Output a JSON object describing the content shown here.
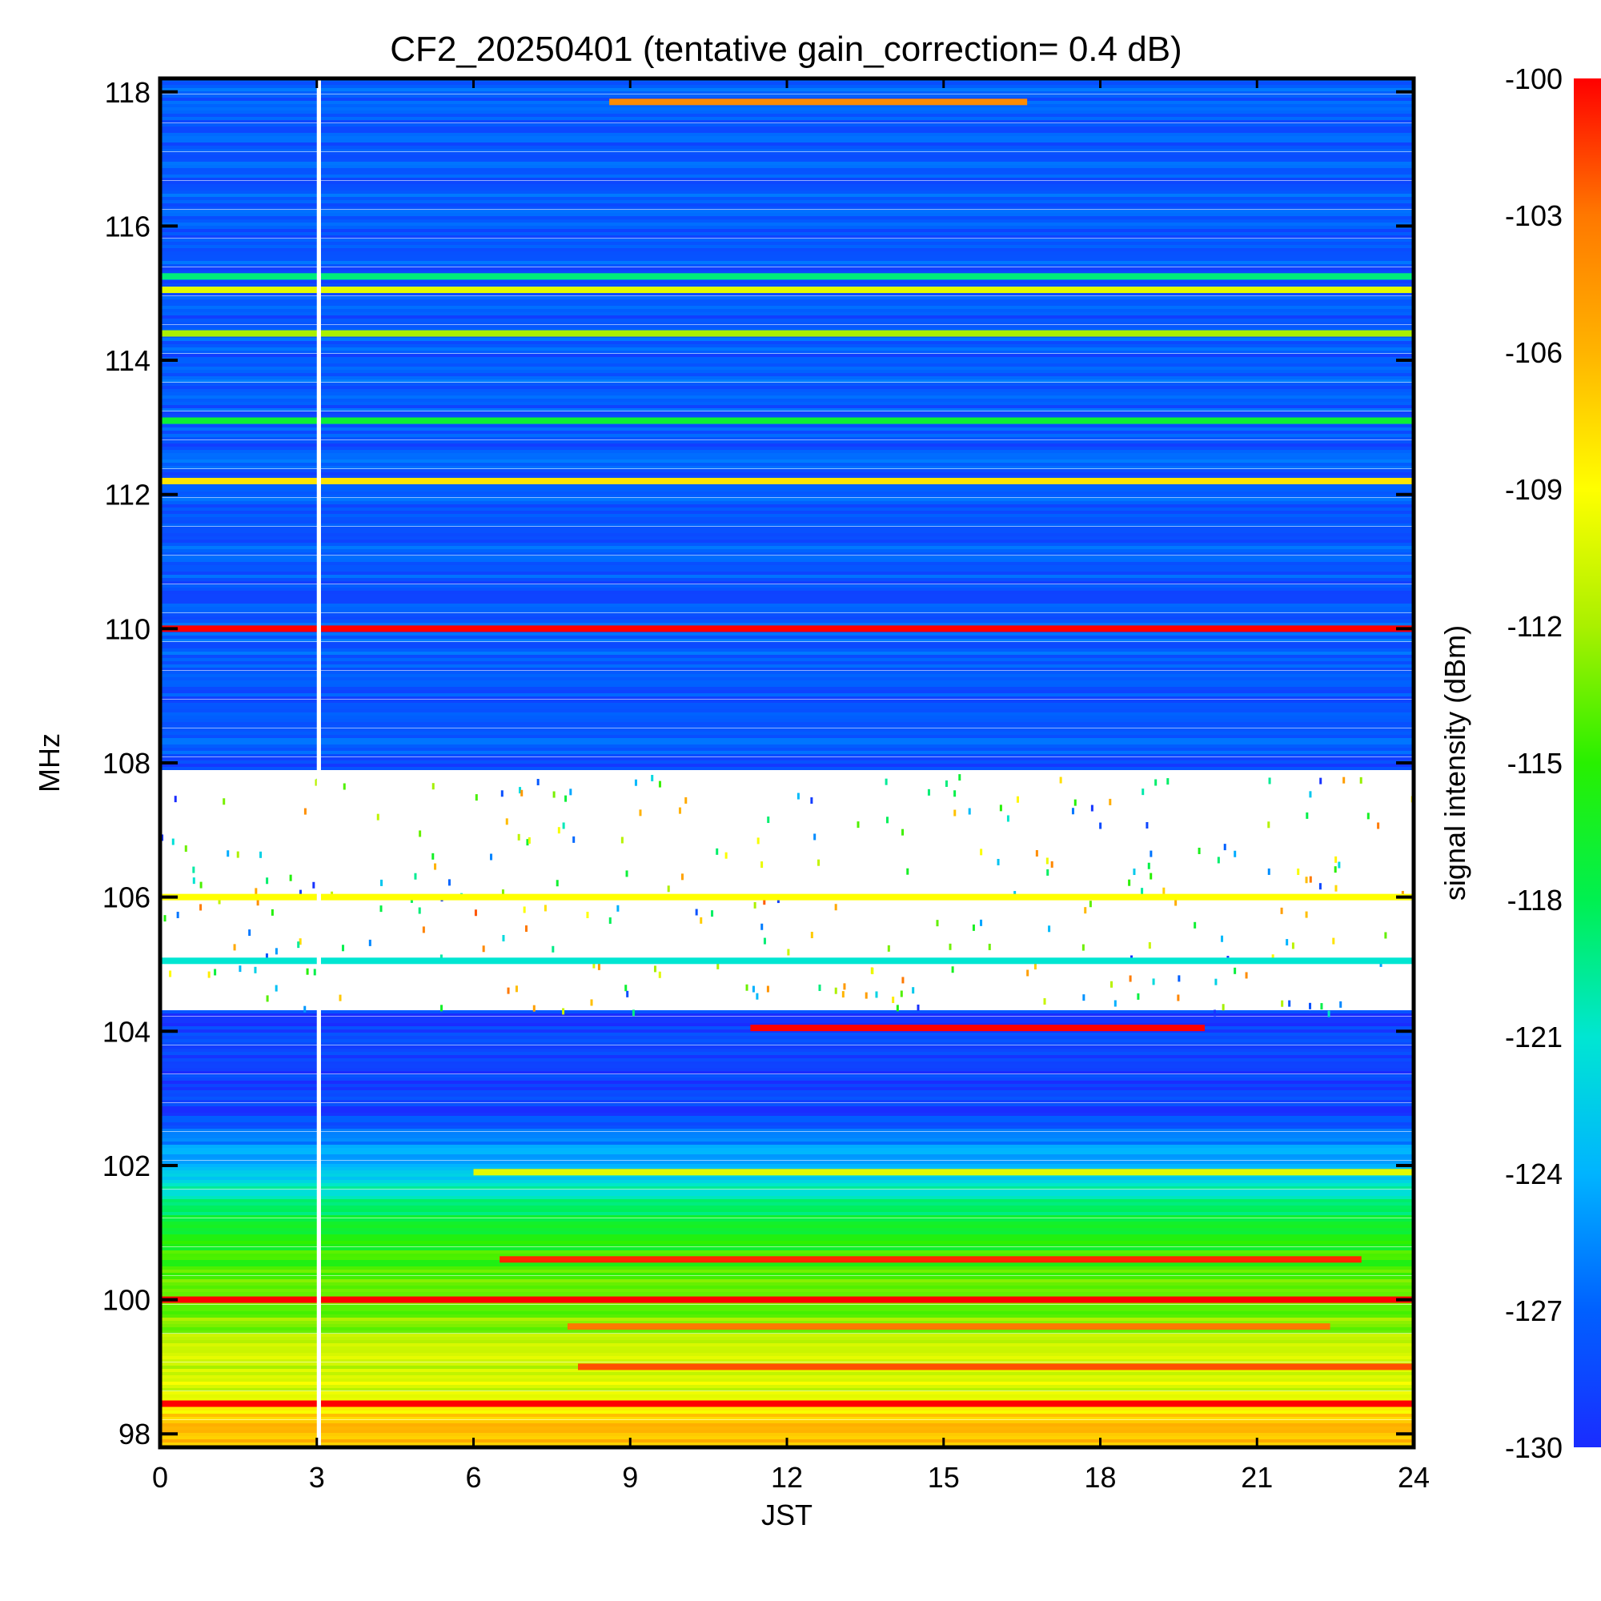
{
  "chart_data": {
    "type": "heatmap",
    "title": "CF2_20250401 (tentative gain_correction=  0.4 dB)",
    "xlabel": "JST",
    "ylabel": "MHz",
    "colorbar_label": "signal intensity (dBm)",
    "x_ticks": [
      "0",
      "3",
      "6",
      "9",
      "12",
      "15",
      "18",
      "21",
      "24"
    ],
    "y_ticks": [
      "98",
      "100",
      "102",
      "104",
      "106",
      "108",
      "110",
      "112",
      "114",
      "116",
      "118"
    ],
    "colorbar_ticks": [
      "-100",
      "-103",
      "-106",
      "-109",
      "-112",
      "-115",
      "-118",
      "-121",
      "-124",
      "-127",
      "-130"
    ],
    "xlim": [
      0,
      24
    ],
    "ylim": [
      97.8,
      118.2
    ],
    "clim": [
      -130,
      -100
    ],
    "colormap": [
      "#1a2cff",
      "#0060ff",
      "#00b4ff",
      "#00e6d2",
      "#00f050",
      "#28f000",
      "#aaf000",
      "#ffff00",
      "#ffb400",
      "#ff7800",
      "#ff0000"
    ],
    "data_gap": {
      "x_from": 3.0,
      "x_to": 3.08
    },
    "saturated_band": {
      "y_from": 104.3,
      "y_to": 107.9
    },
    "bands": [
      {
        "freq": 98.45,
        "dbm": -100,
        "x_from": 0,
        "x_to": 24
      },
      {
        "freq": 99.0,
        "dbm": -102,
        "x_from": 8,
        "x_to": 24
      },
      {
        "freq": 99.6,
        "dbm": -103,
        "x_from": 7.8,
        "x_to": 22.4
      },
      {
        "freq": 100.0,
        "dbm": -100,
        "x_from": 0,
        "x_to": 24
      },
      {
        "freq": 100.6,
        "dbm": -101,
        "x_from": 6.5,
        "x_to": 23
      },
      {
        "freq": 101.9,
        "dbm": -110,
        "x_from": 6,
        "x_to": 24
      },
      {
        "freq": 104.05,
        "dbm": -100,
        "x_from": 11.3,
        "x_to": 20
      },
      {
        "freq": 105.05,
        "dbm": -121,
        "x_from": 0,
        "x_to": 24
      },
      {
        "freq": 106.0,
        "dbm": -109,
        "x_from": 0,
        "x_to": 24
      },
      {
        "freq": 110.0,
        "dbm": -100,
        "x_from": 0,
        "x_to": 24
      },
      {
        "freq": 112.2,
        "dbm": -108,
        "x_from": 0,
        "x_to": 24
      },
      {
        "freq": 113.1,
        "dbm": -117,
        "x_from": 0,
        "x_to": 24
      },
      {
        "freq": 114.4,
        "dbm": -112,
        "x_from": 0,
        "x_to": 24
      },
      {
        "freq": 115.05,
        "dbm": -110,
        "x_from": 0,
        "x_to": 24
      },
      {
        "freq": 115.25,
        "dbm": -119,
        "x_from": 0,
        "x_to": 24
      },
      {
        "freq": 117.85,
        "dbm": -104,
        "x_from": 8.6,
        "x_to": 16.6
      }
    ]
  }
}
